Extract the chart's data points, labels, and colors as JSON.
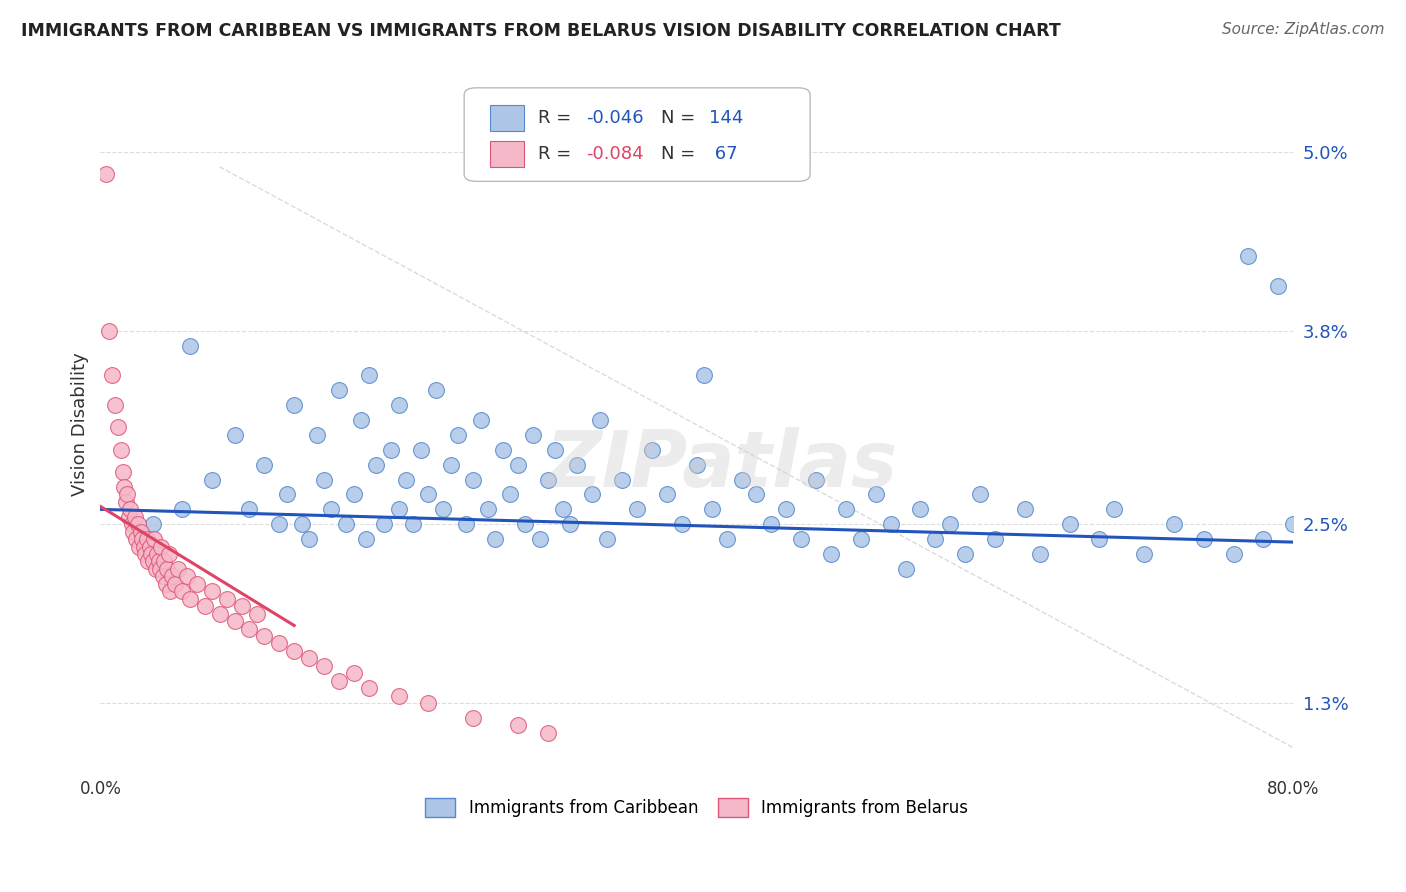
{
  "title": "IMMIGRANTS FROM CARIBBEAN VS IMMIGRANTS FROM BELARUS VISION DISABILITY CORRELATION CHART",
  "source": "Source: ZipAtlas.com",
  "ylabel": "Vision Disability",
  "y_ticks": [
    1.3,
    2.5,
    3.8,
    5.0
  ],
  "y_tick_labels": [
    "1.3%",
    "2.5%",
    "3.8%",
    "5.0%"
  ],
  "xlim": [
    0.0,
    80.0
  ],
  "ylim": [
    0.85,
    5.5
  ],
  "series1_name": "Immigrants from Caribbean",
  "series2_name": "Immigrants from Belarus",
  "series1_color": "#adc6e8",
  "series2_color": "#f5b8c8",
  "series1_edge_color": "#5588cc",
  "series2_edge_color": "#dd5577",
  "trend1_color": "#2255bb",
  "trend2_color": "#dd4466",
  "watermark": "ZIPatlas",
  "watermark_color": "#cccccc",
  "background_color": "#ffffff",
  "grid_color": "#dddddd",
  "title_color": "#222222",
  "source_color": "#666666",
  "legend_r1_color": "#2255bb",
  "legend_r2_color": "#dd4466",
  "legend_n_color": "#2255bb",
  "series1_scatter_x": [
    3.5,
    5.5,
    6.0,
    7.5,
    9.0,
    10.0,
    11.0,
    12.0,
    12.5,
    13.0,
    13.5,
    14.0,
    14.5,
    15.0,
    15.5,
    16.0,
    16.5,
    17.0,
    17.5,
    17.8,
    18.0,
    18.5,
    19.0,
    19.5,
    20.0,
    20.0,
    20.5,
    21.0,
    21.5,
    22.0,
    22.5,
    23.0,
    23.5,
    24.0,
    24.5,
    25.0,
    25.5,
    26.0,
    26.5,
    27.0,
    27.5,
    28.0,
    28.5,
    29.0,
    29.5,
    30.0,
    30.5,
    31.0,
    31.5,
    32.0,
    33.0,
    33.5,
    34.0,
    35.0,
    36.0,
    37.0,
    38.0,
    39.0,
    40.0,
    40.5,
    41.0,
    42.0,
    43.0,
    44.0,
    45.0,
    46.0,
    47.0,
    48.0,
    49.0,
    50.0,
    51.0,
    52.0,
    53.0,
    54.0,
    55.0,
    56.0,
    57.0,
    58.0,
    59.0,
    60.0,
    62.0,
    63.0,
    65.0,
    67.0,
    68.0,
    70.0,
    72.0,
    74.0,
    76.0,
    77.0,
    78.0,
    79.0,
    80.0
  ],
  "series1_scatter_y": [
    2.5,
    2.6,
    3.7,
    2.8,
    3.1,
    2.6,
    2.9,
    2.5,
    2.7,
    3.3,
    2.5,
    2.4,
    3.1,
    2.8,
    2.6,
    3.4,
    2.5,
    2.7,
    3.2,
    2.4,
    3.5,
    2.9,
    2.5,
    3.0,
    2.6,
    3.3,
    2.8,
    2.5,
    3.0,
    2.7,
    3.4,
    2.6,
    2.9,
    3.1,
    2.5,
    2.8,
    3.2,
    2.6,
    2.4,
    3.0,
    2.7,
    2.9,
    2.5,
    3.1,
    2.4,
    2.8,
    3.0,
    2.6,
    2.5,
    2.9,
    2.7,
    3.2,
    2.4,
    2.8,
    2.6,
    3.0,
    2.7,
    2.5,
    2.9,
    3.5,
    2.6,
    2.4,
    2.8,
    2.7,
    2.5,
    2.6,
    2.4,
    2.8,
    2.3,
    2.6,
    2.4,
    2.7,
    2.5,
    2.2,
    2.6,
    2.4,
    2.5,
    2.3,
    2.7,
    2.4,
    2.6,
    2.3,
    2.5,
    2.4,
    2.6,
    2.3,
    2.5,
    2.4,
    2.3,
    4.3,
    2.4,
    4.1,
    2.5
  ],
  "series2_scatter_x": [
    0.4,
    0.6,
    0.8,
    1.0,
    1.2,
    1.4,
    1.5,
    1.6,
    1.7,
    1.8,
    1.9,
    2.0,
    2.1,
    2.2,
    2.3,
    2.4,
    2.5,
    2.6,
    2.7,
    2.8,
    2.9,
    3.0,
    3.1,
    3.2,
    3.3,
    3.4,
    3.5,
    3.6,
    3.7,
    3.8,
    3.9,
    4.0,
    4.1,
    4.2,
    4.3,
    4.4,
    4.5,
    4.6,
    4.7,
    4.8,
    5.0,
    5.2,
    5.5,
    5.8,
    6.0,
    6.5,
    7.0,
    7.5,
    8.0,
    8.5,
    9.0,
    9.5,
    10.0,
    10.5,
    11.0,
    12.0,
    13.0,
    14.0,
    15.0,
    16.0,
    17.0,
    18.0,
    20.0,
    22.0,
    25.0,
    28.0,
    30.0
  ],
  "series2_scatter_y": [
    4.85,
    3.8,
    3.5,
    3.3,
    3.15,
    3.0,
    2.85,
    2.75,
    2.65,
    2.7,
    2.55,
    2.6,
    2.5,
    2.45,
    2.55,
    2.4,
    2.5,
    2.35,
    2.45,
    2.4,
    2.35,
    2.3,
    2.4,
    2.25,
    2.35,
    2.3,
    2.25,
    2.4,
    2.2,
    2.3,
    2.25,
    2.2,
    2.35,
    2.15,
    2.25,
    2.1,
    2.2,
    2.3,
    2.05,
    2.15,
    2.1,
    2.2,
    2.05,
    2.15,
    2.0,
    2.1,
    1.95,
    2.05,
    1.9,
    2.0,
    1.85,
    1.95,
    1.8,
    1.9,
    1.75,
    1.7,
    1.65,
    1.6,
    1.55,
    1.45,
    1.5,
    1.4,
    1.35,
    1.3,
    1.2,
    1.15,
    1.1
  ],
  "trend1_x": [
    0.0,
    80.0
  ],
  "trend1_y": [
    2.6,
    2.38
  ],
  "trend2_x": [
    0.0,
    13.0
  ],
  "trend2_y": [
    2.62,
    1.82
  ],
  "ref_line_x": [
    8.0,
    80.0
  ],
  "ref_line_y": [
    4.9,
    1.0
  ]
}
